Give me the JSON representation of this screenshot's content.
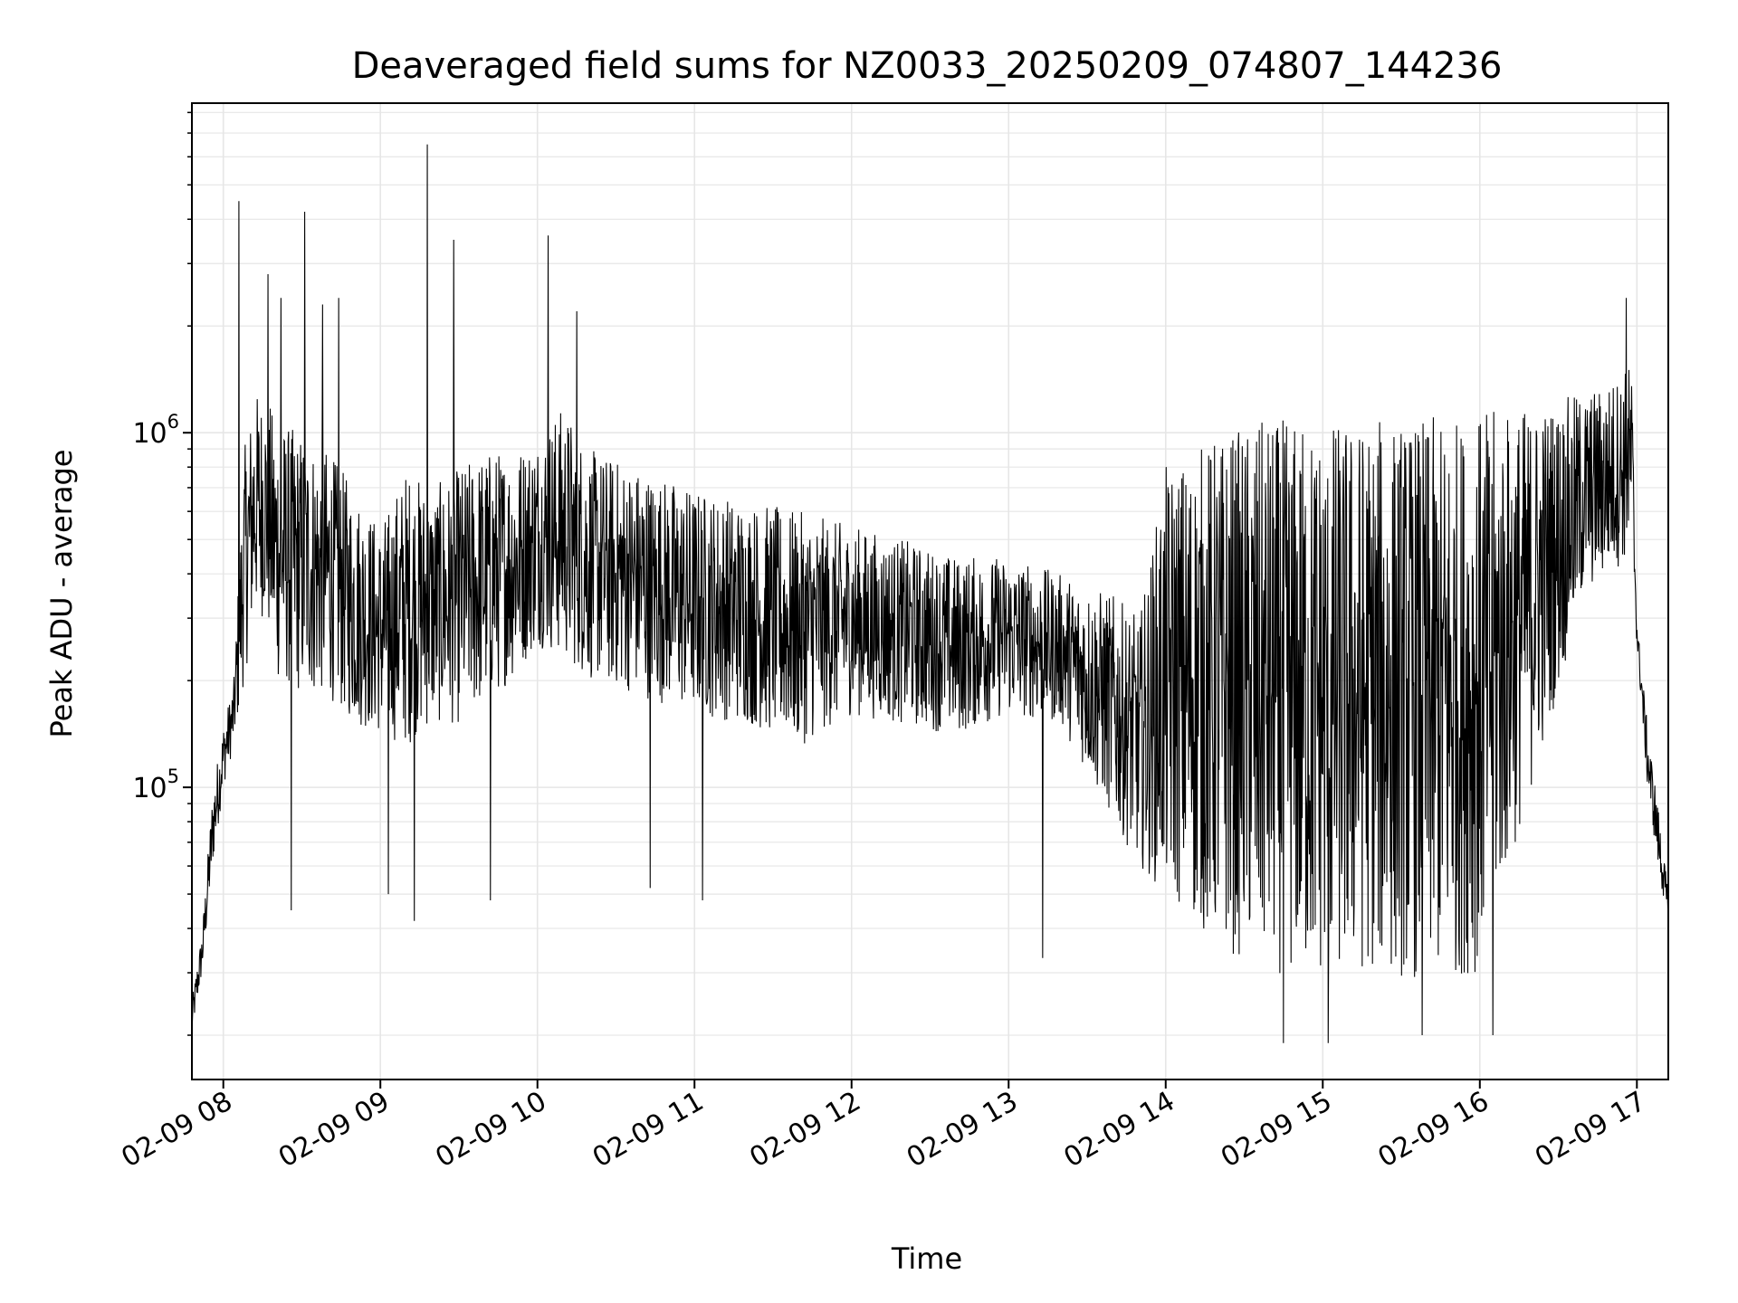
{
  "chart_data": {
    "type": "line",
    "title": "Deaveraged field sums for NZ0033_20250209_074807_144236",
    "xlabel": "Time",
    "ylabel": "Peak ADU - average",
    "y_scale": "log",
    "grid": true,
    "xlim": [
      "2025-02-09 07:48",
      "2025-02-09 17:12"
    ],
    "ylim": [
      15000,
      8500000
    ],
    "x_ticks": [
      {
        "t": "2025-02-09 08:00",
        "label": "02-09 08"
      },
      {
        "t": "2025-02-09 09:00",
        "label": "02-09 09"
      },
      {
        "t": "2025-02-09 10:00",
        "label": "02-09 10"
      },
      {
        "t": "2025-02-09 11:00",
        "label": "02-09 11"
      },
      {
        "t": "2025-02-09 12:00",
        "label": "02-09 12"
      },
      {
        "t": "2025-02-09 13:00",
        "label": "02-09 13"
      },
      {
        "t": "2025-02-09 14:00",
        "label": "02-09 14"
      },
      {
        "t": "2025-02-09 15:00",
        "label": "02-09 15"
      },
      {
        "t": "2025-02-09 16:00",
        "label": "02-09 16"
      },
      {
        "t": "2025-02-09 17:00",
        "label": "02-09 17"
      }
    ],
    "y_ticks": [
      {
        "value": 100000,
        "base": "10",
        "exp": "5"
      },
      {
        "value": 1000000,
        "base": "10",
        "exp": "6"
      }
    ],
    "series": [
      {
        "color": "#000000",
        "x": [
          "2025-02-09 07:48",
          "2025-02-09 07:52",
          "2025-02-09 07:56",
          "2025-02-09 08:00",
          "2025-02-09 08:04",
          "2025-02-09 08:08",
          "2025-02-09 08:12",
          "2025-02-09 08:16",
          "2025-02-09 08:20",
          "2025-02-09 08:30",
          "2025-02-09 08:40",
          "2025-02-09 08:50",
          "2025-02-09 09:00",
          "2025-02-09 09:10",
          "2025-02-09 09:20",
          "2025-02-09 09:30",
          "2025-02-09 09:40",
          "2025-02-09 09:50",
          "2025-02-09 10:00",
          "2025-02-09 10:10",
          "2025-02-09 10:20",
          "2025-02-09 10:40",
          "2025-02-09 11:00",
          "2025-02-09 11:20",
          "2025-02-09 11:40",
          "2025-02-09 12:00",
          "2025-02-09 12:20",
          "2025-02-09 12:40",
          "2025-02-09 13:00",
          "2025-02-09 13:20",
          "2025-02-09 13:40",
          "2025-02-09 13:50",
          "2025-02-09 14:00",
          "2025-02-09 14:20",
          "2025-02-09 14:40",
          "2025-02-09 15:00",
          "2025-02-09 15:20",
          "2025-02-09 15:40",
          "2025-02-09 16:00",
          "2025-02-09 16:20",
          "2025-02-09 16:40",
          "2025-02-09 16:50",
          "2025-02-09 16:58",
          "2025-02-09 17:00",
          "2025-02-09 17:04",
          "2025-02-09 17:08",
          "2025-02-09 17:12"
        ],
        "low": [
          20000,
          30000,
          60000,
          100000,
          130000,
          200000,
          300000,
          300000,
          200000,
          180000,
          180000,
          150000,
          140000,
          130000,
          150000,
          150000,
          170000,
          200000,
          250000,
          230000,
          200000,
          180000,
          160000,
          150000,
          130000,
          160000,
          150000,
          140000,
          160000,
          150000,
          80000,
          60000,
          50000,
          35000,
          30000,
          28000,
          30000,
          28000,
          30000,
          100000,
          350000,
          400000,
          450000,
          250000,
          100000,
          60000,
          40000
        ],
        "high": [
          25000,
          40000,
          100000,
          150000,
          200000,
          900000,
          1300000,
          1300000,
          1100000,
          1000000,
          900000,
          700000,
          550000,
          800000,
          700000,
          800000,
          900000,
          900000,
          1000000,
          1200000,
          900000,
          800000,
          700000,
          650000,
          600000,
          550000,
          500000,
          450000,
          450000,
          400000,
          350000,
          300000,
          800000,
          1000000,
          1100000,
          1100000,
          1100000,
          1100000,
          1150000,
          1200000,
          1300000,
          1400000,
          1600000,
          300000,
          150000,
          90000,
          50000
        ],
        "spikes": [
          {
            "t": "2025-02-09 08:06",
            "y": 4500000
          },
          {
            "t": "2025-02-09 08:17",
            "y": 2800000
          },
          {
            "t": "2025-02-09 08:22",
            "y": 2400000
          },
          {
            "t": "2025-02-09 08:31",
            "y": 4200000
          },
          {
            "t": "2025-02-09 08:38",
            "y": 2300000
          },
          {
            "t": "2025-02-09 08:44",
            "y": 2400000
          },
          {
            "t": "2025-02-09 09:18",
            "y": 6500000
          },
          {
            "t": "2025-02-09 09:28",
            "y": 3500000
          },
          {
            "t": "2025-02-09 10:04",
            "y": 3600000
          },
          {
            "t": "2025-02-09 10:15",
            "y": 2200000
          },
          {
            "t": "2025-02-09 16:56",
            "y": 2400000
          },
          {
            "t": "2025-02-09 08:26",
            "y": 45000
          },
          {
            "t": "2025-02-09 09:03",
            "y": 50000
          },
          {
            "t": "2025-02-09 09:13",
            "y": 42000
          },
          {
            "t": "2025-02-09 09:42",
            "y": 48000
          },
          {
            "t": "2025-02-09 10:43",
            "y": 52000
          },
          {
            "t": "2025-02-09 11:03",
            "y": 48000
          },
          {
            "t": "2025-02-09 13:13",
            "y": 33000
          },
          {
            "t": "2025-02-09 14:45",
            "y": 19000
          },
          {
            "t": "2025-02-09 15:02",
            "y": 19000
          },
          {
            "t": "2025-02-09 15:38",
            "y": 20000
          },
          {
            "t": "2025-02-09 16:05",
            "y": 20000
          }
        ]
      }
    ]
  }
}
